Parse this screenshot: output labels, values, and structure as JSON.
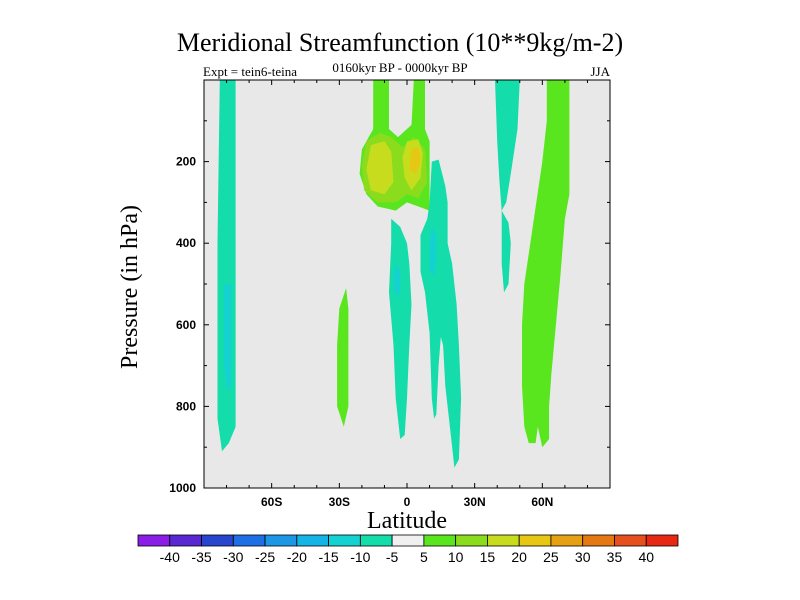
{
  "chart_data": {
    "type": "contour",
    "title": "Meridional Streamfunction (10**9kg/m-2)",
    "subtitle_left": "Expt = tein6-teina",
    "subtitle_center": "0160kyr BP - 0000kyr BP",
    "subtitle_right": "JJA",
    "xlabel": "Latitude",
    "ylabel": "Pressure (in hPa)",
    "xlim": [
      -90,
      90
    ],
    "ylim": [
      1000,
      0
    ],
    "x_ticks": [
      {
        "value": -60,
        "label": "60S"
      },
      {
        "value": -30,
        "label": "30S"
      },
      {
        "value": 0,
        "label": "0"
      },
      {
        "value": 30,
        "label": "30N"
      },
      {
        "value": 60,
        "label": "60N"
      }
    ],
    "y_ticks": [
      {
        "value": 200,
        "label": "200"
      },
      {
        "value": 400,
        "label": "400"
      },
      {
        "value": 600,
        "label": "600"
      },
      {
        "value": 800,
        "label": "800"
      },
      {
        "value": 1000,
        "label": "1000"
      }
    ],
    "background_color": "#e8e8e8",
    "colorbar": {
      "labels": [
        "-40",
        "-35",
        "-30",
        "-25",
        "-20",
        "-15",
        "-10",
        "-5",
        "5",
        "10",
        "15",
        "20",
        "25",
        "30",
        "35",
        "40"
      ],
      "colors": [
        "#8a1ee6",
        "#5a28d2",
        "#2846cd",
        "#1e6ee6",
        "#1e96e6",
        "#14b4e6",
        "#14d2d2",
        "#14dcaa",
        "#f0f0f0",
        "#5ae61e",
        "#8cdc1e",
        "#c8dc1e",
        "#e6c814",
        "#e6a014",
        "#e67814",
        "#e6501e",
        "#e62814"
      ]
    },
    "regions": [
      {
        "name": "sh-high-lat-negative-column",
        "level": "-10 to -5",
        "color": "#14dcaa",
        "points": [
          [
            -83,
            0
          ],
          [
            -76,
            0
          ],
          [
            -76,
            850
          ],
          [
            -79,
            890
          ],
          [
            -82,
            910
          ],
          [
            -84,
            830
          ],
          [
            -84,
            400
          ],
          [
            -83,
            0
          ]
        ]
      },
      {
        "name": "sh-high-lat-negative-core",
        "level": "-15 to -10",
        "color": "#14d2d2",
        "points": [
          [
            -81,
            500
          ],
          [
            -78,
            500
          ],
          [
            -78,
            750
          ],
          [
            -80,
            760
          ],
          [
            -81,
            700
          ]
        ]
      },
      {
        "name": "nh-negative-column-north",
        "level": "-10 to -5",
        "color": "#14dcaa",
        "points": [
          [
            39,
            0
          ],
          [
            50,
            0
          ],
          [
            49,
            120
          ],
          [
            46,
            230
          ],
          [
            44,
            300
          ],
          [
            42,
            320
          ],
          [
            41,
            250
          ],
          [
            40,
            150
          ]
        ]
      },
      {
        "name": "nh-negative-column-low",
        "level": "-10 to -5",
        "color": "#14dcaa",
        "points": [
          [
            42,
            320
          ],
          [
            45,
            350
          ],
          [
            46,
            400
          ],
          [
            45,
            500
          ],
          [
            43,
            520
          ],
          [
            42,
            450
          ]
        ]
      },
      {
        "name": "upper-tropical-positive",
        "level": "5 to 10",
        "color": "#5ae61e",
        "points": [
          [
            -15,
            0
          ],
          [
            -8,
            0
          ],
          [
            -8,
            120
          ],
          [
            -4,
            140
          ],
          [
            2,
            110
          ],
          [
            3,
            0
          ],
          [
            8,
            0
          ],
          [
            8,
            120
          ],
          [
            10,
            150
          ],
          [
            10,
            320
          ],
          [
            5,
            310
          ],
          [
            0,
            300
          ],
          [
            -5,
            320
          ],
          [
            -13,
            310
          ],
          [
            -18,
            280
          ],
          [
            -21,
            230
          ],
          [
            -20,
            170
          ],
          [
            -15,
            120
          ]
        ]
      },
      {
        "name": "upper-tropical-positive-15",
        "level": "10 to 15",
        "color": "#8cdc1e",
        "points": [
          [
            -18,
            150
          ],
          [
            -12,
            130
          ],
          [
            -7,
            140
          ],
          [
            -2,
            165
          ],
          [
            3,
            140
          ],
          [
            8,
            170
          ],
          [
            9,
            250
          ],
          [
            5,
            290
          ],
          [
            0,
            280
          ],
          [
            -5,
            300
          ],
          [
            -13,
            300
          ],
          [
            -19,
            270
          ],
          [
            -20,
            210
          ]
        ]
      },
      {
        "name": "upper-tropical-positive-20a",
        "level": "15 to 20",
        "color": "#c8dc1e",
        "points": [
          [
            -16,
            160
          ],
          [
            -10,
            150
          ],
          [
            -7,
            175
          ],
          [
            -6,
            250
          ],
          [
            -10,
            280
          ],
          [
            -16,
            270
          ],
          [
            -18,
            220
          ]
        ]
      },
      {
        "name": "upper-tropical-positive-20b",
        "level": "15 to 20",
        "color": "#c8dc1e",
        "points": [
          [
            0,
            150
          ],
          [
            5,
            145
          ],
          [
            7,
            180
          ],
          [
            6,
            240
          ],
          [
            2,
            270
          ],
          [
            -1,
            240
          ],
          [
            -2,
            190
          ]
        ]
      },
      {
        "name": "upper-tropical-positive-25",
        "level": "20 to 25",
        "color": "#e6c814",
        "points": [
          [
            2,
            170
          ],
          [
            5,
            165
          ],
          [
            6,
            200
          ],
          [
            4,
            230
          ],
          [
            1,
            220
          ]
        ]
      },
      {
        "name": "tropical-negative-a",
        "level": "-10 to -5",
        "color": "#14dcaa",
        "points": [
          [
            -7,
            340
          ],
          [
            -3,
            360
          ],
          [
            0,
            400
          ],
          [
            1,
            450
          ],
          [
            2,
            550
          ],
          [
            1,
            650
          ],
          [
            0,
            780
          ],
          [
            -1,
            870
          ],
          [
            -3,
            880
          ],
          [
            -5,
            780
          ],
          [
            -6,
            650
          ],
          [
            -8,
            520
          ],
          [
            -7,
            400
          ]
        ]
      },
      {
        "name": "tropical-negative-b",
        "level": "-10 to -5",
        "color": "#14dcaa",
        "points": [
          [
            11,
            200
          ],
          [
            14,
            195
          ],
          [
            17,
            260
          ],
          [
            18,
            300
          ],
          [
            18,
            400
          ],
          [
            20,
            450
          ],
          [
            22,
            550
          ],
          [
            23,
            650
          ],
          [
            24,
            780
          ],
          [
            23,
            930
          ],
          [
            21,
            950
          ],
          [
            19,
            850
          ],
          [
            17,
            750
          ],
          [
            16,
            650
          ],
          [
            15,
            630
          ],
          [
            14,
            700
          ],
          [
            13,
            820
          ],
          [
            12,
            830
          ],
          [
            11,
            780
          ],
          [
            10,
            620
          ],
          [
            8,
            520
          ],
          [
            6,
            470
          ],
          [
            6,
            380
          ],
          [
            9,
            340
          ],
          [
            10,
            300
          ]
        ]
      },
      {
        "name": "tropical-negative-b-core",
        "level": "-15 to -10",
        "color": "#14d2d2",
        "points": [
          [
            11,
            360
          ],
          [
            13,
            380
          ],
          [
            13,
            440
          ],
          [
            12,
            480
          ],
          [
            10,
            470
          ],
          [
            10,
            400
          ]
        ]
      },
      {
        "name": "tropical-negative-a-core",
        "level": "-15 to -10",
        "color": "#14d2d2",
        "points": [
          [
            -5,
            450
          ],
          [
            -3,
            470
          ],
          [
            -3,
            520
          ],
          [
            -5,
            530
          ],
          [
            -6,
            490
          ]
        ]
      },
      {
        "name": "sh-mid-positive-band",
        "level": "5 to 10",
        "color": "#5ae61e",
        "points": [
          [
            -27,
            510
          ],
          [
            -26,
            560
          ],
          [
            -26,
            700
          ],
          [
            -26,
            800
          ],
          [
            -28,
            850
          ],
          [
            -31,
            800
          ],
          [
            -31,
            650
          ],
          [
            -30,
            560
          ]
        ]
      },
      {
        "name": "nh-mid-positive-band",
        "level": "5 to 10",
        "color": "#5ae61e",
        "points": [
          [
            62,
            0
          ],
          [
            72,
            0
          ],
          [
            72,
            280
          ],
          [
            70,
            340
          ],
          [
            68,
            480
          ],
          [
            66,
            600
          ],
          [
            64,
            720
          ],
          [
            63,
            800
          ],
          [
            63,
            880
          ],
          [
            60,
            900
          ],
          [
            58,
            850
          ],
          [
            57,
            890
          ],
          [
            54,
            890
          ],
          [
            52,
            850
          ],
          [
            51,
            750
          ],
          [
            51,
            600
          ],
          [
            52,
            500
          ],
          [
            56,
            350
          ],
          [
            60,
            200
          ],
          [
            62,
            100
          ]
        ]
      }
    ]
  }
}
